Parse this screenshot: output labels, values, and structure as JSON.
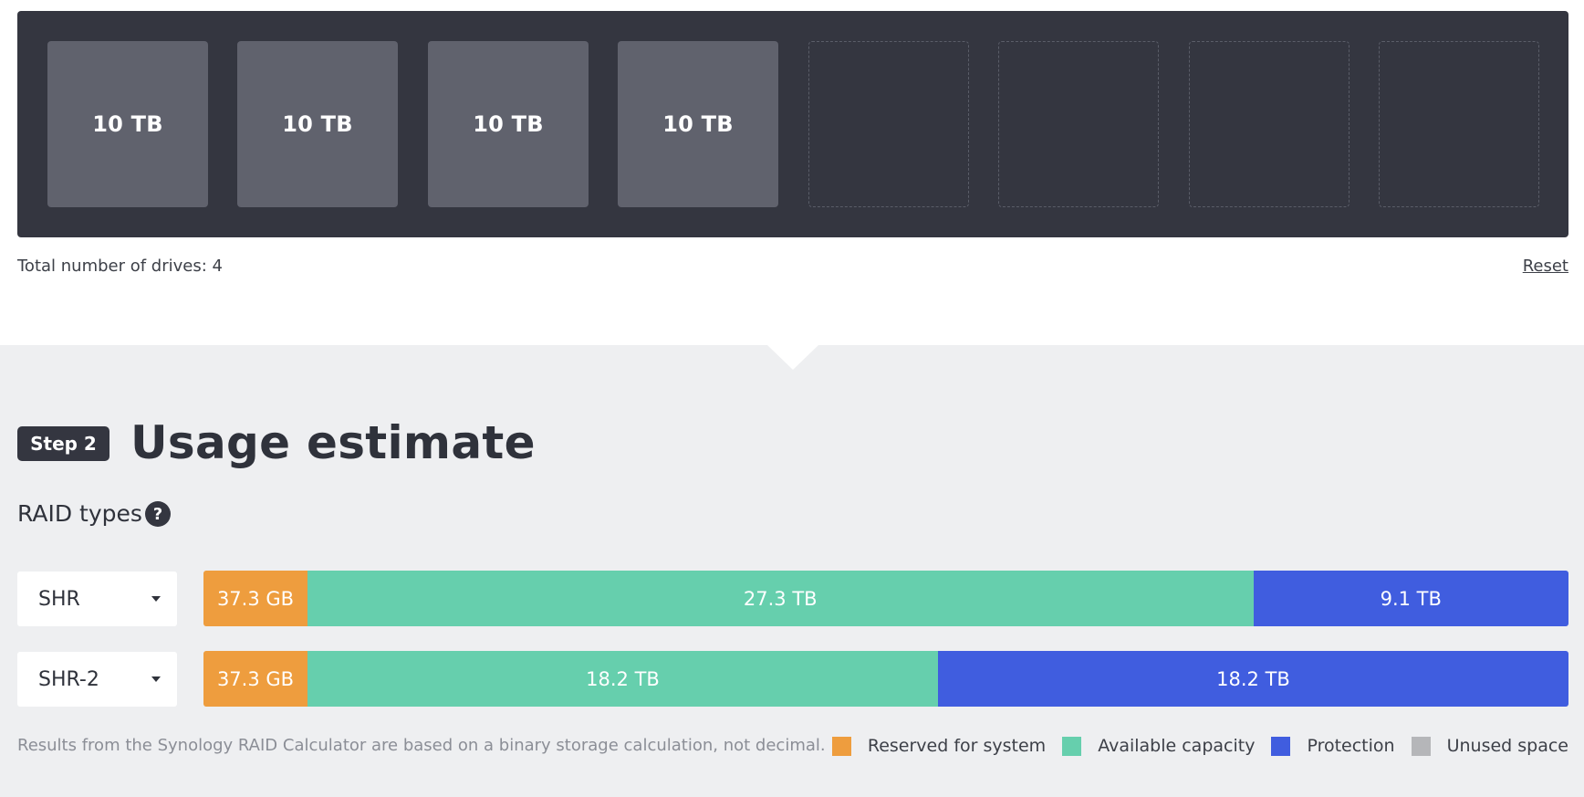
{
  "drives": {
    "slots": [
      {
        "label": "10 TB",
        "filled": true
      },
      {
        "label": "10 TB",
        "filled": true
      },
      {
        "label": "10 TB",
        "filled": true
      },
      {
        "label": "10 TB",
        "filled": true
      },
      {
        "label": "",
        "filled": false
      },
      {
        "label": "",
        "filled": false
      },
      {
        "label": "",
        "filled": false
      },
      {
        "label": "",
        "filled": false
      }
    ],
    "total_text": "Total number of drives: 4",
    "reset_label": "Reset"
  },
  "step2": {
    "badge": "Step 2",
    "title": "Usage estimate",
    "raid_types_label": "RAID types",
    "help_glyph": "?"
  },
  "raid_rows": [
    {
      "type": "SHR",
      "segments": [
        {
          "kind": "reserved",
          "label": "37.3 GB",
          "value_tb": 0.0373
        },
        {
          "kind": "available",
          "label": "27.3 TB",
          "value_tb": 27.3
        },
        {
          "kind": "protection",
          "label": "9.1 TB",
          "value_tb": 9.1
        }
      ]
    },
    {
      "type": "SHR-2",
      "segments": [
        {
          "kind": "reserved",
          "label": "37.3 GB",
          "value_tb": 0.0373
        },
        {
          "kind": "available",
          "label": "18.2 TB",
          "value_tb": 18.2
        },
        {
          "kind": "protection",
          "label": "18.2 TB",
          "value_tb": 18.2
        }
      ]
    }
  ],
  "footer": {
    "disclaimer": "Results from the Synology RAID Calculator are based on a binary storage calculation, not decimal.",
    "legend": [
      {
        "label": "Reserved for system",
        "color": "#ee9d3e"
      },
      {
        "label": "Available capacity",
        "color": "#66cfad"
      },
      {
        "label": "Protection",
        "color": "#405ddf"
      },
      {
        "label": "Unused space",
        "color": "#b5b6b9"
      }
    ]
  }
}
